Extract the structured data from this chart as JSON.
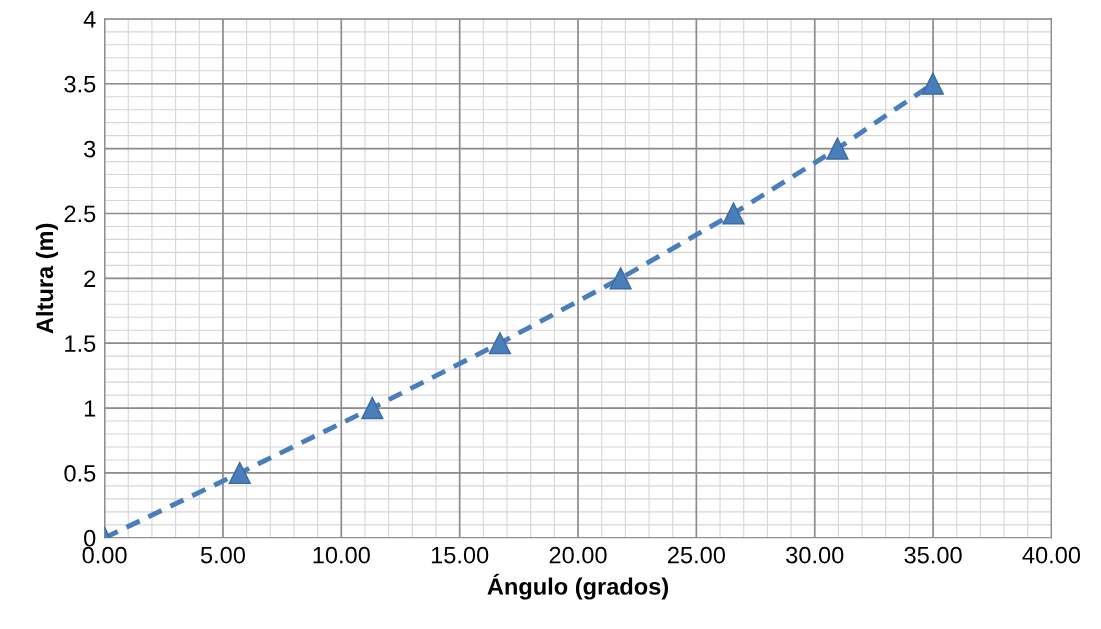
{
  "chart_data": {
    "type": "line",
    "xlabel": "Ángulo (grados)",
    "ylabel": "Altura (m)",
    "x": [
      0,
      5.71,
      11.31,
      16.7,
      21.8,
      26.57,
      30.96,
      34.99
    ],
    "series": [
      {
        "color": "#4a7ebb",
        "values": [
          0,
          0.5,
          1,
          1.5,
          2,
          2.5,
          3,
          3.5
        ]
      }
    ],
    "marker": "triangle",
    "line_style": "dashed",
    "grid": true,
    "xlim": [
      0,
      40
    ],
    "ylim": [
      0,
      4
    ],
    "xticks": [
      {
        "value": 0,
        "label": "0.00"
      },
      {
        "value": 5,
        "label": "5.00"
      },
      {
        "value": 10,
        "label": "10.00"
      },
      {
        "value": 15,
        "label": "15.00"
      },
      {
        "value": 20,
        "label": "20.00"
      },
      {
        "value": 25,
        "label": "25.00"
      },
      {
        "value": 30,
        "label": "30.00"
      },
      {
        "value": 35,
        "label": "35.00"
      },
      {
        "value": 40,
        "label": "40.00"
      }
    ],
    "yticks": [
      0,
      0.5,
      1,
      1.5,
      2,
      2.5,
      3,
      3.5,
      4
    ]
  }
}
